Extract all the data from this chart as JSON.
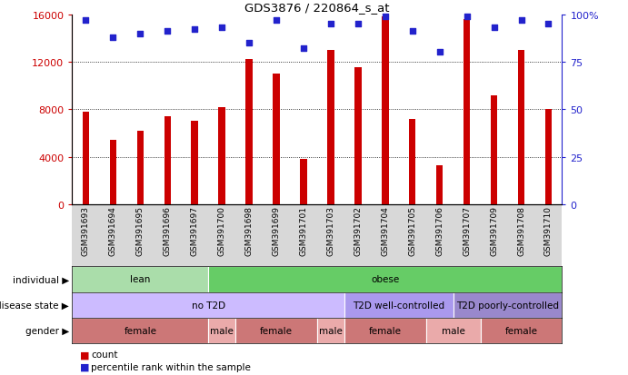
{
  "title": "GDS3876 / 220864_s_at",
  "samples": [
    "GSM391693",
    "GSM391694",
    "GSM391695",
    "GSM391696",
    "GSM391697",
    "GSM391700",
    "GSM391698",
    "GSM391699",
    "GSM391701",
    "GSM391703",
    "GSM391702",
    "GSM391704",
    "GSM391705",
    "GSM391706",
    "GSM391707",
    "GSM391709",
    "GSM391708",
    "GSM391710"
  ],
  "counts": [
    7800,
    5400,
    6200,
    7400,
    7000,
    8200,
    12200,
    11000,
    3800,
    13000,
    11500,
    15800,
    7200,
    3300,
    15600,
    9200,
    13000,
    8000
  ],
  "percentile_ranks": [
    97,
    88,
    90,
    91,
    92,
    93,
    85,
    97,
    82,
    95,
    95,
    99,
    91,
    80,
    99,
    93,
    97,
    95
  ],
  "bar_color": "#cc0000",
  "dot_color": "#2222cc",
  "ylim_left": [
    0,
    16000
  ],
  "ylim_right": [
    0,
    100
  ],
  "yticks_left": [
    0,
    4000,
    8000,
    12000,
    16000
  ],
  "yticks_right": [
    0,
    25,
    50,
    75,
    100
  ],
  "ytick_labels_right": [
    "0",
    "25",
    "50",
    "75",
    "100%"
  ],
  "grid_values": [
    4000,
    8000,
    12000
  ],
  "individual_groups": [
    {
      "label": "lean",
      "start": 0,
      "end": 5,
      "color": "#aaddaa"
    },
    {
      "label": "obese",
      "start": 5,
      "end": 18,
      "color": "#66cc66"
    }
  ],
  "disease_groups": [
    {
      "label": "no T2D",
      "start": 0,
      "end": 10,
      "color": "#ccbbff"
    },
    {
      "label": "T2D well-controlled",
      "start": 10,
      "end": 14,
      "color": "#aa99ee"
    },
    {
      "label": "T2D poorly-controlled",
      "start": 14,
      "end": 18,
      "color": "#9988cc"
    }
  ],
  "gender_groups": [
    {
      "label": "female",
      "start": 0,
      "end": 5,
      "color": "#cc7777"
    },
    {
      "label": "male",
      "start": 5,
      "end": 6,
      "color": "#eaaaaa"
    },
    {
      "label": "female",
      "start": 6,
      "end": 9,
      "color": "#cc7777"
    },
    {
      "label": "male",
      "start": 9,
      "end": 10,
      "color": "#eaaaaa"
    },
    {
      "label": "female",
      "start": 10,
      "end": 13,
      "color": "#cc7777"
    },
    {
      "label": "male",
      "start": 13,
      "end": 15,
      "color": "#eaaaaa"
    },
    {
      "label": "female",
      "start": 15,
      "end": 18,
      "color": "#cc7777"
    }
  ],
  "row_labels": [
    "individual",
    "disease state",
    "gender"
  ],
  "xtick_bg_color": "#d8d8d8",
  "legend_count_label": "count",
  "legend_pct_label": "percentile rank within the sample"
}
